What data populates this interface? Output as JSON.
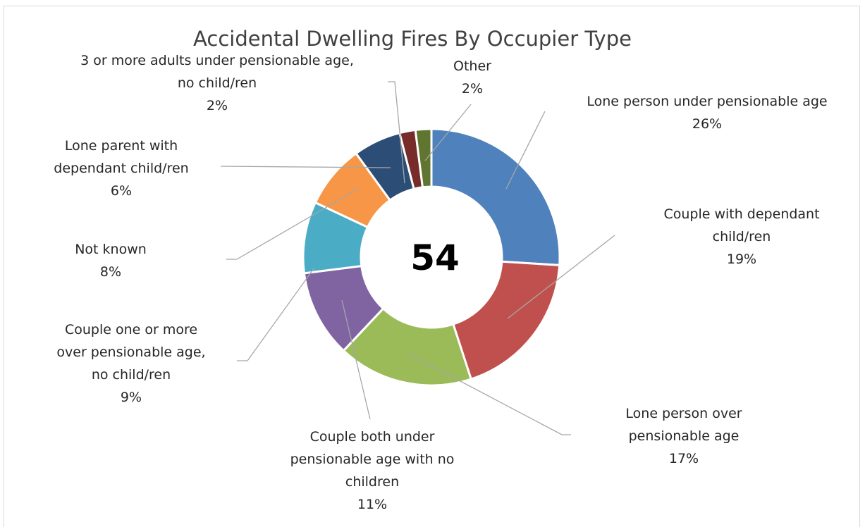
{
  "chart_data": {
    "type": "pie",
    "variant": "doughnut",
    "title": "Accidental Dwelling Fires By Occupier Type",
    "center_value": "54",
    "slices": [
      {
        "label_lines": [
          "Lone person under pensionable age"
        ],
        "value_label": "26%",
        "value": 26,
        "color": "#4f81bd"
      },
      {
        "label_lines": [
          "Couple with dependant",
          "child/ren"
        ],
        "value_label": "19%",
        "value": 19,
        "color": "#c0504d"
      },
      {
        "label_lines": [
          "Lone person over",
          "pensionable age"
        ],
        "value_label": "17%",
        "value": 17,
        "color": "#9bbb59"
      },
      {
        "label_lines": [
          "Couple both under",
          "pensionable age with no",
          "children"
        ],
        "value_label": "11%",
        "value": 11,
        "color": "#8064a2"
      },
      {
        "label_lines": [
          "Couple one or more",
          "over pensionable age,",
          "no child/ren"
        ],
        "value_label": "9%",
        "value": 9,
        "color": "#4bacc6"
      },
      {
        "label_lines": [
          "Not known"
        ],
        "value_label": "8%",
        "value": 8,
        "color": "#f79646"
      },
      {
        "label_lines": [
          "Lone parent with",
          "dependant child/ren"
        ],
        "value_label": "6%",
        "value": 6,
        "color": "#2c4d75"
      },
      {
        "label_lines": [
          "3 or more adults under pensionable age,",
          "no child/ren"
        ],
        "value_label": "2%",
        "value": 2,
        "color": "#772c2a"
      },
      {
        "label_lines": [
          "Other"
        ],
        "value_label": "2%",
        "value": 2,
        "color": "#5f7530"
      }
    ],
    "legend": "none",
    "data_labels": "outside with leader lines"
  }
}
